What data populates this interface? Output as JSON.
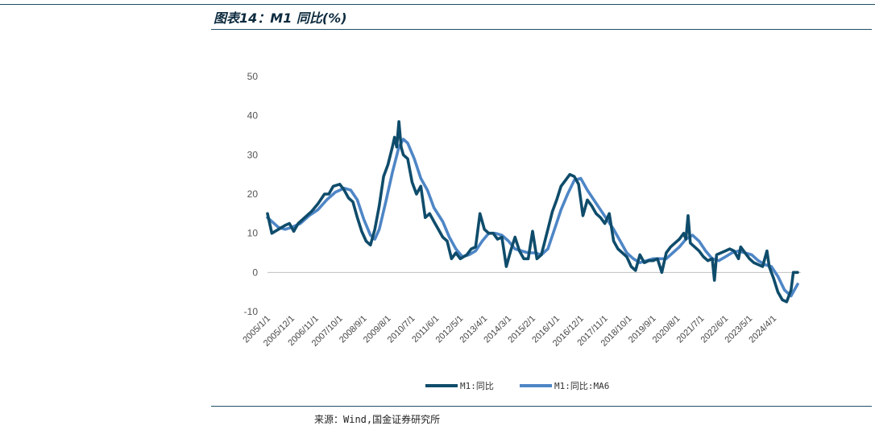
{
  "header": {
    "title": "图表14：M1 同比(%)"
  },
  "footer": {
    "source": "来源：Wind,国金证券研究所"
  },
  "colors": {
    "series_m1": "#0f4c6b",
    "series_ma6": "#4e86c6",
    "rule": "#1f4e66"
  },
  "chart_data": {
    "type": "line",
    "title": "",
    "xlabel": "",
    "ylabel": "",
    "ylim": [
      -10,
      50
    ],
    "yticks": [
      -10,
      0,
      10,
      20,
      30,
      40,
      50
    ],
    "grid": false,
    "legend_position": "bottom",
    "xtick_labels": [
      "2005/1/1",
      "2005/12/1",
      "2006/11/1",
      "2007/10/1",
      "2008/9/1",
      "2009/8/1",
      "2010/7/1",
      "2011/6/1",
      "2012/5/1",
      "2013/4/1",
      "2014/3/1",
      "2015/2/1",
      "2016/1/1",
      "2016/12/1",
      "2017/11/1",
      "2018/10/1",
      "2019/9/1",
      "2020/8/1",
      "2021/7/1",
      "2022/6/1",
      "2023/5/1",
      "2024/4/1"
    ],
    "series": [
      {
        "name": "M1:同比",
        "points": [
          [
            "2005/1",
            15
          ],
          [
            "2005/3",
            10
          ],
          [
            "2005/6",
            11
          ],
          [
            "2005/9",
            12
          ],
          [
            "2005/11",
            12.5
          ],
          [
            "2006/1",
            10.5
          ],
          [
            "2006/3",
            12.5
          ],
          [
            "2006/6",
            14
          ],
          [
            "2006/9",
            15.5
          ],
          [
            "2006/12",
            17.5
          ],
          [
            "2007/3",
            20
          ],
          [
            "2007/5",
            20
          ],
          [
            "2007/7",
            22
          ],
          [
            "2007/10",
            22.5
          ],
          [
            "2007/12",
            21
          ],
          [
            "2008/2",
            19
          ],
          [
            "2008/4",
            18
          ],
          [
            "2008/6",
            14
          ],
          [
            "2008/8",
            10.5
          ],
          [
            "2008/10",
            8
          ],
          [
            "2008/12",
            7
          ],
          [
            "2009/2",
            11
          ],
          [
            "2009/4",
            17
          ],
          [
            "2009/6",
            24.5
          ],
          [
            "2009/8",
            27.5
          ],
          [
            "2009/10",
            32
          ],
          [
            "2009/11",
            34.5
          ],
          [
            "2009/12",
            32
          ],
          [
            "2010/1",
            38.5
          ],
          [
            "2010/2",
            32
          ],
          [
            "2010/3",
            30
          ],
          [
            "2010/5",
            29
          ],
          [
            "2010/7",
            23
          ],
          [
            "2010/9",
            20
          ],
          [
            "2010/11",
            22
          ],
          [
            "2011/1",
            14
          ],
          [
            "2011/3",
            15
          ],
          [
            "2011/5",
            13
          ],
          [
            "2011/7",
            11
          ],
          [
            "2011/9",
            9
          ],
          [
            "2011/11",
            8
          ],
          [
            "2012/1",
            3.5
          ],
          [
            "2012/3",
            5
          ],
          [
            "2012/5",
            3.5
          ],
          [
            "2012/8",
            4.5
          ],
          [
            "2012/10",
            6
          ],
          [
            "2012/12",
            6.5
          ],
          [
            "2013/2",
            15
          ],
          [
            "2013/4",
            11
          ],
          [
            "2013/6",
            10
          ],
          [
            "2013/8",
            10
          ],
          [
            "2013/10",
            8.5
          ],
          [
            "2013/12",
            9
          ],
          [
            "2014/2",
            1.5
          ],
          [
            "2014/4",
            5.5
          ],
          [
            "2014/6",
            9
          ],
          [
            "2014/8",
            5.5
          ],
          [
            "2014/10",
            3.5
          ],
          [
            "2014/12",
            3.5
          ],
          [
            "2015/2",
            10.5
          ],
          [
            "2015/4",
            3.5
          ],
          [
            "2015/6",
            4.5
          ],
          [
            "2015/9",
            11
          ],
          [
            "2015/11",
            15.5
          ],
          [
            "2016/1",
            18.5
          ],
          [
            "2016/3",
            22
          ],
          [
            "2016/5",
            23.5
          ],
          [
            "2016/7",
            25
          ],
          [
            "2016/9",
            24.5
          ],
          [
            "2016/11",
            22.5
          ],
          [
            "2017/1",
            14.5
          ],
          [
            "2017/3",
            18.5
          ],
          [
            "2017/5",
            17
          ],
          [
            "2017/7",
            15
          ],
          [
            "2017/9",
            14
          ],
          [
            "2017/11",
            12.5
          ],
          [
            "2018/1",
            15
          ],
          [
            "2018/3",
            8
          ],
          [
            "2018/5",
            6
          ],
          [
            "2018/7",
            5
          ],
          [
            "2018/9",
            4
          ],
          [
            "2018/11",
            1.5
          ],
          [
            "2019/1",
            0.5
          ],
          [
            "2019/3",
            4.5
          ],
          [
            "2019/5",
            2.5
          ],
          [
            "2019/7",
            3
          ],
          [
            "2019/9",
            3
          ],
          [
            "2019/11",
            3.5
          ],
          [
            "2020/1",
            0
          ],
          [
            "2020/3",
            5
          ],
          [
            "2020/5",
            6.5
          ],
          [
            "2020/7",
            7.5
          ],
          [
            "2020/9",
            8.5
          ],
          [
            "2020/11",
            10
          ],
          [
            "2020/12",
            8.5
          ],
          [
            "2021/1",
            14.5
          ],
          [
            "2021/2",
            7.5
          ],
          [
            "2021/4",
            6.5
          ],
          [
            "2021/6",
            5.5
          ],
          [
            "2021/8",
            4
          ],
          [
            "2021/10",
            3
          ],
          [
            "2021/12",
            3.5
          ],
          [
            "2022/1",
            -2
          ],
          [
            "2022/2",
            4.5
          ],
          [
            "2022/4",
            5
          ],
          [
            "2022/6",
            5.5
          ],
          [
            "2022/8",
            6
          ],
          [
            "2022/10",
            5.5
          ],
          [
            "2022/12",
            3.5
          ],
          [
            "2023/1",
            6.5
          ],
          [
            "2023/3",
            5
          ],
          [
            "2023/5",
            3.5
          ],
          [
            "2023/7",
            2.5
          ],
          [
            "2023/9",
            2
          ],
          [
            "2023/11",
            1.5
          ],
          [
            "2024/1",
            5.5
          ],
          [
            "2024/2",
            1.5
          ],
          [
            "2024/4",
            -1.5
          ],
          [
            "2024/6",
            -5
          ],
          [
            "2024/8",
            -7
          ],
          [
            "2024/10",
            -7.5
          ],
          [
            "2024/12",
            -4.5
          ],
          [
            "2025/1",
            0
          ],
          [
            "2025/3",
            0
          ]
        ]
      },
      {
        "name": "M1:同比:MA6",
        "points": [
          [
            "2005/1",
            14
          ],
          [
            "2005/6",
            11.5
          ],
          [
            "2005/9",
            11
          ],
          [
            "2005/12",
            11.5
          ],
          [
            "2006/4",
            12.5
          ],
          [
            "2006/8",
            14.5
          ],
          [
            "2006/12",
            16
          ],
          [
            "2007/4",
            18.5
          ],
          [
            "2007/8",
            20.5
          ],
          [
            "2007/12",
            21.5
          ],
          [
            "2008/3",
            21
          ],
          [
            "2008/6",
            18.5
          ],
          [
            "2008/9",
            13.5
          ],
          [
            "2008/12",
            9.5
          ],
          [
            "2009/2",
            8.5
          ],
          [
            "2009/4",
            11
          ],
          [
            "2009/7",
            18
          ],
          [
            "2009/10",
            25.5
          ],
          [
            "2010/1",
            32
          ],
          [
            "2010/3",
            34
          ],
          [
            "2010/5",
            33
          ],
          [
            "2010/8",
            29
          ],
          [
            "2010/11",
            24
          ],
          [
            "2011/2",
            21
          ],
          [
            "2011/5",
            16.5
          ],
          [
            "2011/9",
            13
          ],
          [
            "2011/12",
            9
          ],
          [
            "2012/3",
            6
          ],
          [
            "2012/6",
            4
          ],
          [
            "2012/9",
            4.5
          ],
          [
            "2012/12",
            5.5
          ],
          [
            "2013/3",
            8
          ],
          [
            "2013/6",
            10
          ],
          [
            "2013/9",
            10
          ],
          [
            "2013/12",
            9.5
          ],
          [
            "2014/3",
            8
          ],
          [
            "2014/6",
            6
          ],
          [
            "2014/9",
            5.5
          ],
          [
            "2014/12",
            5
          ],
          [
            "2015/3",
            5
          ],
          [
            "2015/6",
            4.5
          ],
          [
            "2015/9",
            6
          ],
          [
            "2015/12",
            11
          ],
          [
            "2016/3",
            16
          ],
          [
            "2016/6",
            20
          ],
          [
            "2016/9",
            23.5
          ],
          [
            "2016/12",
            24
          ],
          [
            "2017/3",
            21
          ],
          [
            "2017/6",
            18.5
          ],
          [
            "2017/9",
            16
          ],
          [
            "2017/12",
            13.5
          ],
          [
            "2018/3",
            11
          ],
          [
            "2018/6",
            8
          ],
          [
            "2018/9",
            5
          ],
          [
            "2018/12",
            3.5
          ],
          [
            "2019/3",
            2.5
          ],
          [
            "2019/6",
            3
          ],
          [
            "2019/9",
            3.5
          ],
          [
            "2019/12",
            3.5
          ],
          [
            "2020/3",
            3.5
          ],
          [
            "2020/6",
            5
          ],
          [
            "2020/9",
            6.5
          ],
          [
            "2020/12",
            8.5
          ],
          [
            "2021/3",
            9.5
          ],
          [
            "2021/6",
            8
          ],
          [
            "2021/9",
            5.5
          ],
          [
            "2021/12",
            3.5
          ],
          [
            "2022/3",
            3
          ],
          [
            "2022/6",
            4
          ],
          [
            "2022/9",
            5
          ],
          [
            "2022/12",
            5.5
          ],
          [
            "2023/3",
            5
          ],
          [
            "2023/6",
            4.5
          ],
          [
            "2023/9",
            3
          ],
          [
            "2023/12",
            2
          ],
          [
            "2024/3",
            1.5
          ],
          [
            "2024/6",
            -1
          ],
          [
            "2024/9",
            -4.5
          ],
          [
            "2024/12",
            -6
          ],
          [
            "2025/3",
            -3
          ]
        ]
      }
    ]
  }
}
